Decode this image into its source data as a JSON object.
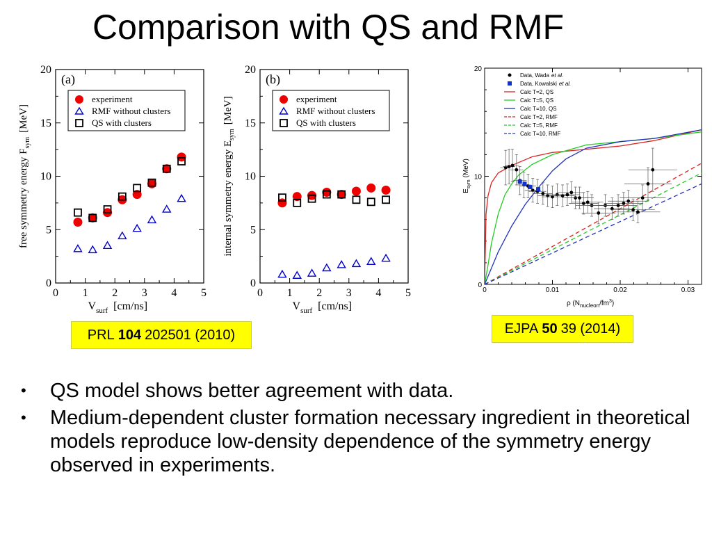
{
  "slide": {
    "title": "Comparison with QS and RMF",
    "refs": [
      {
        "prefix": "PRL",
        "bold": "104",
        "rest": "202501 (2010)"
      },
      {
        "prefix": "EJPA",
        "bold": "50",
        "rest": "39 (2014)"
      }
    ],
    "bullets": [
      "QS model shows better agreement with data.",
      "Medium-dependent cluster formation necessary ingredient in theoretical models reproduce low-density dependence of the symmetry energy observed in experiments."
    ],
    "colors": {
      "experiment": "#ee0000",
      "rmf": "#0000cc",
      "qs": "#000000",
      "ref_bg": "#ffff00"
    }
  },
  "chart_data": [
    {
      "type": "scatter",
      "panel": "(a)",
      "ylabel": "free symmetry energy",
      "ylabel_sub": "F",
      "ylabel_subsub": "sym",
      "ylabel_unit": "[MeV]",
      "xlabel": "V",
      "xlabel_sub": "surf",
      "xlabel_unit": "[cm/ns]",
      "xlim": [
        0,
        5
      ],
      "ylim": [
        0,
        20
      ],
      "xticks": [
        "0",
        "1",
        "2",
        "3",
        "4",
        "5"
      ],
      "yticks": [
        "0",
        "5",
        "10",
        "15",
        "20"
      ],
      "legend": [
        "experiment",
        "RMF without clusters",
        "QS with clusters"
      ],
      "x": [
        0.75,
        1.25,
        1.75,
        2.25,
        2.75,
        3.25,
        3.75,
        4.25
      ],
      "series": [
        {
          "name": "experiment",
          "marker": "circle",
          "values": [
            5.7,
            6.1,
            6.6,
            7.8,
            8.3,
            9.3,
            10.7,
            11.8
          ]
        },
        {
          "name": "RMF without clusters",
          "marker": "triangle",
          "values": [
            3.2,
            3.1,
            3.5,
            4.4,
            5.1,
            5.9,
            6.9,
            7.9
          ]
        },
        {
          "name": "QS with clusters",
          "marker": "square",
          "values": [
            6.6,
            6.1,
            6.9,
            8.1,
            8.9,
            9.4,
            10.7,
            11.4
          ]
        }
      ]
    },
    {
      "type": "scatter",
      "panel": "(b)",
      "ylabel": "internal symmetry energy",
      "ylabel_sub": "E",
      "ylabel_subsub": "sym",
      "ylabel_unit": "[MeV]",
      "xlabel": "V",
      "xlabel_sub": "surf",
      "xlabel_unit": "[cm/ns]",
      "xlim": [
        0,
        5
      ],
      "ylim": [
        0,
        20
      ],
      "xticks": [
        "0",
        "1",
        "2",
        "3",
        "4",
        "5"
      ],
      "yticks": [
        "0",
        "5",
        "10",
        "15",
        "20"
      ],
      "legend": [
        "experiment",
        "RMF without clusters",
        "QS with clusters"
      ],
      "x": [
        0.75,
        1.25,
        1.75,
        2.25,
        2.75,
        3.25,
        3.75,
        4.25
      ],
      "series": [
        {
          "name": "experiment",
          "marker": "circle",
          "values": [
            7.5,
            8.1,
            8.2,
            8.5,
            8.3,
            8.6,
            8.9,
            8.7
          ]
        },
        {
          "name": "RMF without clusters",
          "marker": "triangle",
          "values": [
            0.8,
            0.7,
            0.9,
            1.4,
            1.7,
            1.8,
            2.0,
            2.3
          ]
        },
        {
          "name": "QS with clusters",
          "marker": "square",
          "values": [
            8.0,
            7.5,
            7.9,
            8.3,
            8.3,
            7.8,
            7.6,
            7.8
          ]
        }
      ]
    },
    {
      "type": "line",
      "ylabel": "E",
      "ylabel_sub": "sym",
      "ylabel_unit": "(MeV)",
      "xlabel": "ρ (N",
      "xlabel_sub": "nucleon",
      "xlabel_unit": "/fm",
      "xlabel_sup": "3",
      "xlabel_end": ")",
      "xlim": [
        0,
        0.032
      ],
      "ylim": [
        0,
        20
      ],
      "xticks": [
        "0",
        "0.01",
        "0.02",
        "0.03"
      ],
      "xtick_values": [
        0,
        0.01,
        0.02,
        0.03
      ],
      "yticks": [
        "0",
        "10",
        "20"
      ],
      "ytick_values": [
        0,
        10,
        20
      ],
      "legend": [
        {
          "label": "Data, Wada",
          "italic": "et al.",
          "marker": "dot-black"
        },
        {
          "label": "Data, Kowalski",
          "italic": "et al.",
          "marker": "square-blue"
        },
        {
          "label": "Calc T=2,   QS",
          "color": "#dd2222",
          "dash": false
        },
        {
          "label": "Calc T=5,   QS",
          "color": "#22cc22",
          "dash": false
        },
        {
          "label": "Calc T=10, QS",
          "color": "#2233bb",
          "dash": false
        },
        {
          "label": "Calc T=2,   RMF",
          "color": "#dd2222",
          "dash": true
        },
        {
          "label": "Calc T=5,   RMF",
          "color": "#22cc22",
          "dash": true
        },
        {
          "label": "Calc T=10, RMF",
          "color": "#2233bb",
          "dash": true
        }
      ],
      "lines": [
        {
          "name": "Calc T=2, QS",
          "color": "#dd2222",
          "dash": false,
          "x": [
            0,
            0.0002,
            0.0005,
            0.001,
            0.002,
            0.004,
            0.007,
            0.01,
            0.015,
            0.02,
            0.025,
            0.032
          ],
          "y": [
            0,
            6.5,
            8.2,
            9.4,
            10.3,
            11.0,
            11.8,
            12.2,
            12.5,
            12.8,
            13.3,
            14.3
          ]
        },
        {
          "name": "Calc T=5, QS",
          "color": "#22cc22",
          "dash": false,
          "x": [
            0,
            0.0005,
            0.001,
            0.002,
            0.003,
            0.004,
            0.005,
            0.007,
            0.01,
            0.015,
            0.02,
            0.025,
            0.032
          ],
          "y": [
            0,
            1.8,
            3.8,
            6.5,
            8.3,
            9.3,
            10.1,
            11.1,
            12.0,
            12.9,
            13.2,
            13.5,
            14.1
          ]
        },
        {
          "name": "Calc T=10, QS",
          "color": "#2233bb",
          "dash": false,
          "x": [
            0,
            0.002,
            0.004,
            0.006,
            0.008,
            0.01,
            0.012,
            0.015,
            0.02,
            0.025,
            0.032
          ],
          "y": [
            0,
            3.0,
            5.4,
            7.4,
            9.0,
            10.5,
            11.6,
            12.6,
            13.2,
            13.5,
            14.3
          ]
        },
        {
          "name": "Calc T=2, RMF",
          "color": "#dd2222",
          "dash": true,
          "x": [
            0,
            0.032
          ],
          "y": [
            0,
            11.2
          ]
        },
        {
          "name": "Calc T=5, RMF",
          "color": "#22cc22",
          "dash": true,
          "x": [
            0,
            0.032
          ],
          "y": [
            0,
            10.3
          ]
        },
        {
          "name": "Calc T=10, RMF",
          "color": "#2233bb",
          "dash": true,
          "x": [
            0,
            0.032
          ],
          "y": [
            0,
            9.3
          ]
        }
      ],
      "wada": [
        {
          "x": 0.0031,
          "y": 10.8,
          "ex": 0.0008,
          "ey": 1.6
        },
        {
          "x": 0.0036,
          "y": 10.9,
          "ex": 0.0009,
          "ey": 1.6
        },
        {
          "x": 0.0041,
          "y": 11.0,
          "ex": 0.001,
          "ey": 1.5
        },
        {
          "x": 0.0047,
          "y": 10.6,
          "ex": 0.001,
          "ey": 1.4
        },
        {
          "x": 0.0052,
          "y": 9.6,
          "ex": 0.001,
          "ey": 1.3
        },
        {
          "x": 0.0058,
          "y": 9.2,
          "ex": 0.0011,
          "ey": 1.2
        },
        {
          "x": 0.0064,
          "y": 9.1,
          "ex": 0.0012,
          "ey": 1.1
        },
        {
          "x": 0.0071,
          "y": 8.7,
          "ex": 0.0012,
          "ey": 1.1
        },
        {
          "x": 0.0078,
          "y": 8.6,
          "ex": 0.0013,
          "ey": 1.1
        },
        {
          "x": 0.0086,
          "y": 8.4,
          "ex": 0.0014,
          "ey": 1.0
        },
        {
          "x": 0.0093,
          "y": 8.2,
          "ex": 0.0015,
          "ey": 1.0
        },
        {
          "x": 0.01,
          "y": 8.1,
          "ex": 0.0016,
          "ey": 1.0
        },
        {
          "x": 0.0107,
          "y": 8.3,
          "ex": 0.0017,
          "ey": 1.0
        },
        {
          "x": 0.0115,
          "y": 8.2,
          "ex": 0.0018,
          "ey": 1.0
        },
        {
          "x": 0.0122,
          "y": 8.3,
          "ex": 0.0019,
          "ey": 1.0
        },
        {
          "x": 0.0128,
          "y": 8.5,
          "ex": 0.002,
          "ey": 1.0
        },
        {
          "x": 0.0134,
          "y": 8.0,
          "ex": 0.002,
          "ey": 1.0
        },
        {
          "x": 0.014,
          "y": 8.0,
          "ex": 0.0021,
          "ey": 1.0
        },
        {
          "x": 0.0146,
          "y": 7.5,
          "ex": 0.0022,
          "ey": 1.0
        },
        {
          "x": 0.0152,
          "y": 7.6,
          "ex": 0.0023,
          "ey": 1.0
        },
        {
          "x": 0.0158,
          "y": 7.3,
          "ex": 0.0024,
          "ey": 1.0
        },
        {
          "x": 0.0168,
          "y": 6.6,
          "ex": 0.0025,
          "ey": 1.0
        },
        {
          "x": 0.0178,
          "y": 7.3,
          "ex": 0.0026,
          "ey": 1.0
        },
        {
          "x": 0.0188,
          "y": 7.0,
          "ex": 0.0027,
          "ey": 1.0
        },
        {
          "x": 0.0197,
          "y": 7.3,
          "ex": 0.0028,
          "ey": 1.0
        },
        {
          "x": 0.0205,
          "y": 7.5,
          "ex": 0.0029,
          "ey": 1.0
        },
        {
          "x": 0.0212,
          "y": 7.7,
          "ex": 0.003,
          "ey": 1.0
        },
        {
          "x": 0.0219,
          "y": 6.9,
          "ex": 0.0032,
          "ey": 1.0
        },
        {
          "x": 0.0226,
          "y": 6.7,
          "ex": 0.0033,
          "ey": 1.0
        },
        {
          "x": 0.0233,
          "y": 8.0,
          "ex": 0.0034,
          "ey": 1.2
        },
        {
          "x": 0.0241,
          "y": 9.3,
          "ex": 0.0035,
          "ey": 1.5
        },
        {
          "x": 0.0248,
          "y": 10.6,
          "ex": 0.0036,
          "ey": 2.0
        }
      ],
      "kowalski": [
        {
          "x": 0.0052,
          "y": 9.5
        },
        {
          "x": 0.0059,
          "y": 9.3
        },
        {
          "x": 0.0067,
          "y": 9.0
        },
        {
          "x": 0.0079,
          "y": 8.8
        }
      ]
    }
  ]
}
